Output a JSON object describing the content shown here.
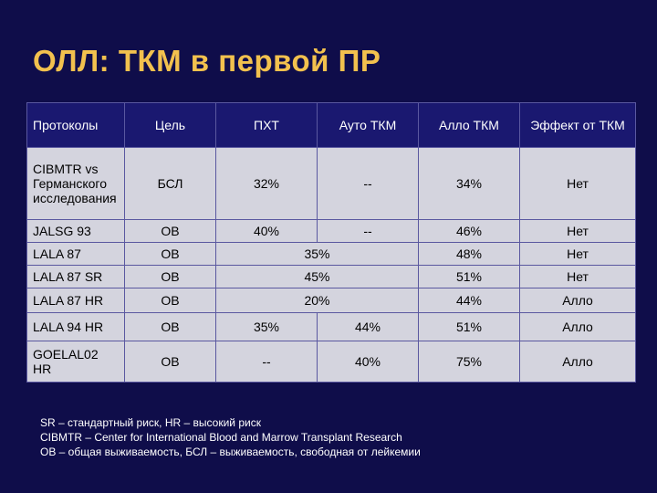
{
  "title": "ОЛЛ: ТКМ в первой ПР",
  "table": {
    "headers": [
      "Протоколы",
      "Цель",
      "ПХТ",
      "Ауто ТКМ",
      "Алло ТКМ",
      "Эффект от ТКМ"
    ],
    "rows": [
      {
        "protocol": "CIBMTR vs Германского исследования",
        "goal": "БСЛ",
        "chemo": "32%",
        "auto": "--",
        "allo": "34%",
        "effect": "Нет"
      },
      {
        "protocol": "JALSG 93",
        "goal": "ОВ",
        "chemo": "40%",
        "auto": "--",
        "allo": "46%",
        "effect": "Нет"
      },
      {
        "protocol": "LALA 87",
        "goal": "ОВ",
        "chemo_auto": "35%",
        "allo": "48%",
        "effect": "Нет"
      },
      {
        "protocol": "LALA 87 SR",
        "goal": "ОВ",
        "chemo_auto": "45%",
        "allo": "51%",
        "effect": "Нет"
      },
      {
        "protocol": "LALA 87 HR",
        "goal": "ОВ",
        "chemo_auto": "20%",
        "allo": "44%",
        "effect": "Алло"
      },
      {
        "protocol": "LALA 94 HR",
        "goal": "ОВ",
        "chemo": "35%",
        "auto": "44%",
        "allo": "51%",
        "effect": "Алло"
      },
      {
        "protocol": "GOELAL02 HR",
        "goal": "ОВ",
        "chemo": "--",
        "auto": "40%",
        "allo": "75%",
        "effect": "Алло"
      }
    ]
  },
  "notes": [
    "SR – стандартный риск, HR – высокий риск",
    "CIBMTR – Center for International Blood and Marrow Transplant Research",
    "ОВ – общая выживаемость, БСЛ – выживаемость, свободная от лейкемии"
  ]
}
